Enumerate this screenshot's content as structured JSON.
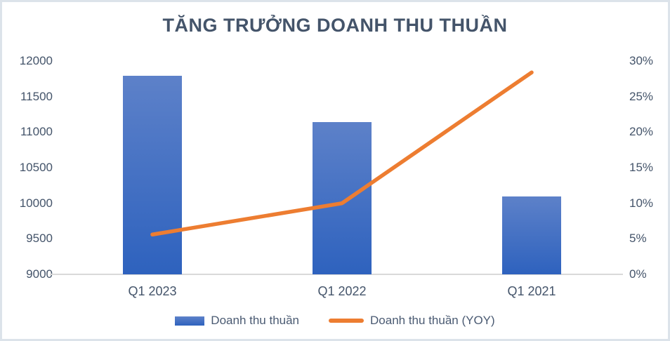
{
  "title": "TĂNG TRƯỞNG DOANH THU THUẦN",
  "colors": {
    "title_text": "#44546A",
    "axis_text": "#44546A",
    "legend_text": "#4A5A72",
    "bar_gradient_top": "#5D81C9",
    "bar_gradient_bottom": "#2E62BE",
    "line": "#ED7D31",
    "axis_line": "#D9D9D9",
    "frame_border": "#DCE3EA",
    "background": "#FFFFFF"
  },
  "chart_data": {
    "type": "bar",
    "subtype": "combo-bar-line",
    "title": "TĂNG TRƯỞNG DOANH THU THUẦN",
    "categories": [
      "Q1 2023",
      "Q1 2022",
      "Q1 2021"
    ],
    "series": [
      {
        "name": "Doanh thu thuần",
        "type": "bar",
        "axis": "left",
        "values": [
          11790,
          11140,
          10100
        ]
      },
      {
        "name": "Doanh thu thuần (YOY)",
        "type": "line",
        "axis": "right",
        "values": [
          5.6,
          10.0,
          28.4
        ],
        "unit": "%"
      }
    ],
    "left_axis": {
      "min": 9000,
      "max": 12000,
      "step": 500,
      "ticks": [
        "9000",
        "9500",
        "10000",
        "10500",
        "11000",
        "11500",
        "12000"
      ]
    },
    "right_axis": {
      "min": 0,
      "max": 30,
      "step": 5,
      "ticks": [
        "0%",
        "5%",
        "10%",
        "15%",
        "20%",
        "25%",
        "30%"
      ]
    },
    "legend": [
      "Doanh thu thuần",
      "Doanh thu thuần (YOY)"
    ],
    "legend_position": "bottom",
    "grid": false,
    "xlabel": "",
    "ylabel": ""
  }
}
